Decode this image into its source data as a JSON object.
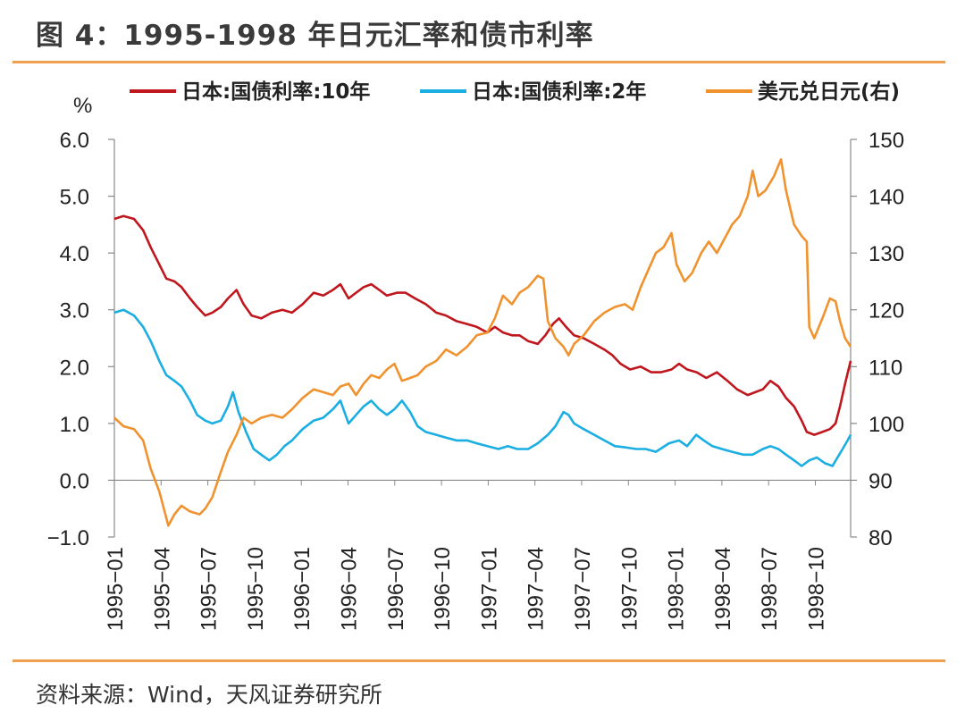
{
  "header": {
    "title": "图 4：1995-1998 年日元汇率和债市利率"
  },
  "footer": {
    "source": "资料来源：Wind，天风证券研究所"
  },
  "chart_data": {
    "type": "line",
    "left_unit": "%",
    "left_axis": {
      "ylim": [
        -1.0,
        6.0
      ],
      "ticks": [
        "6.0",
        "5.0",
        "4.0",
        "3.0",
        "2.0",
        "1.0",
        "0.0",
        "−1.0"
      ]
    },
    "right_axis": {
      "ylim": [
        80,
        150
      ],
      "ticks": [
        "150",
        "140",
        "130",
        "120",
        "110",
        "100",
        "90",
        "80"
      ]
    },
    "x_ticks": [
      "1995−01",
      "1995−04",
      "1995−07",
      "1995−10",
      "1996−01",
      "1996−04",
      "1996−07",
      "1996−10",
      "1997−01",
      "1997−04",
      "1997−07",
      "1997−10",
      "1998−01",
      "1998−04",
      "1998−07",
      "1998−10"
    ],
    "x_range": [
      "1995-01-02",
      "1998-12-31"
    ],
    "legend_position": "top",
    "series": [
      {
        "name": "日本:国债利率:10年",
        "axis": "left",
        "color": "#c0161d",
        "points": [
          [
            "1995-01-02",
            4.6
          ],
          [
            "1995-01-20",
            4.65
          ],
          [
            "1995-02-10",
            4.6
          ],
          [
            "1995-02-28",
            4.4
          ],
          [
            "1995-03-15",
            4.1
          ],
          [
            "1995-04-01",
            3.8
          ],
          [
            "1995-04-15",
            3.55
          ],
          [
            "1995-05-01",
            3.5
          ],
          [
            "1995-05-15",
            3.4
          ],
          [
            "1995-06-01",
            3.2
          ],
          [
            "1995-06-15",
            3.05
          ],
          [
            "1995-07-01",
            2.9
          ],
          [
            "1995-07-15",
            2.95
          ],
          [
            "1995-08-01",
            3.05
          ],
          [
            "1995-08-15",
            3.2
          ],
          [
            "1995-09-01",
            3.35
          ],
          [
            "1995-09-15",
            3.1
          ],
          [
            "1995-10-01",
            2.9
          ],
          [
            "1995-10-20",
            2.85
          ],
          [
            "1995-11-10",
            2.95
          ],
          [
            "1995-12-01",
            3.0
          ],
          [
            "1995-12-20",
            2.95
          ],
          [
            "1996-01-10",
            3.1
          ],
          [
            "1996-02-01",
            3.3
          ],
          [
            "1996-02-20",
            3.25
          ],
          [
            "1996-03-10",
            3.35
          ],
          [
            "1996-03-25",
            3.45
          ],
          [
            "1996-04-10",
            3.2
          ],
          [
            "1996-04-25",
            3.3
          ],
          [
            "1996-05-10",
            3.4
          ],
          [
            "1996-05-25",
            3.45
          ],
          [
            "1996-06-10",
            3.35
          ],
          [
            "1996-06-25",
            3.25
          ],
          [
            "1996-07-15",
            3.3
          ],
          [
            "1996-08-01",
            3.3
          ],
          [
            "1996-08-20",
            3.2
          ],
          [
            "1996-09-10",
            3.1
          ],
          [
            "1996-10-01",
            2.95
          ],
          [
            "1996-10-20",
            2.9
          ],
          [
            "1996-11-10",
            2.8
          ],
          [
            "1996-12-01",
            2.75
          ],
          [
            "1996-12-20",
            2.7
          ],
          [
            "1997-01-10",
            2.6
          ],
          [
            "1997-01-25",
            2.7
          ],
          [
            "1997-02-10",
            2.6
          ],
          [
            "1997-02-28",
            2.55
          ],
          [
            "1997-03-15",
            2.55
          ],
          [
            "1997-04-01",
            2.45
          ],
          [
            "1997-04-20",
            2.4
          ],
          [
            "1997-05-05",
            2.55
          ],
          [
            "1997-05-20",
            2.75
          ],
          [
            "1997-06-01",
            2.85
          ],
          [
            "1997-06-15",
            2.7
          ],
          [
            "1997-07-01",
            2.55
          ],
          [
            "1997-07-20",
            2.5
          ],
          [
            "1997-08-10",
            2.4
          ],
          [
            "1997-08-30",
            2.3
          ],
          [
            "1997-09-15",
            2.2
          ],
          [
            "1997-10-01",
            2.05
          ],
          [
            "1997-10-20",
            1.95
          ],
          [
            "1997-11-10",
            2.0
          ],
          [
            "1997-12-01",
            1.9
          ],
          [
            "1997-12-20",
            1.9
          ],
          [
            "1998-01-10",
            1.95
          ],
          [
            "1998-01-25",
            2.05
          ],
          [
            "1998-02-10",
            1.95
          ],
          [
            "1998-03-01",
            1.9
          ],
          [
            "1998-03-20",
            1.8
          ],
          [
            "1998-04-10",
            1.9
          ],
          [
            "1998-05-01",
            1.75
          ],
          [
            "1998-05-20",
            1.6
          ],
          [
            "1998-06-10",
            1.5
          ],
          [
            "1998-06-25",
            1.55
          ],
          [
            "1998-07-10",
            1.6
          ],
          [
            "1998-07-25",
            1.75
          ],
          [
            "1998-08-10",
            1.65
          ],
          [
            "1998-08-25",
            1.45
          ],
          [
            "1998-09-10",
            1.3
          ],
          [
            "1998-09-25",
            1.05
          ],
          [
            "1998-10-05",
            0.85
          ],
          [
            "1998-10-20",
            0.8
          ],
          [
            "1998-11-05",
            0.85
          ],
          [
            "1998-11-20",
            0.9
          ],
          [
            "1998-12-01",
            1.0
          ],
          [
            "1998-12-10",
            1.3
          ],
          [
            "1998-12-20",
            1.7
          ],
          [
            "1998-12-31",
            2.1
          ]
        ]
      },
      {
        "name": "日本:国债利率:2年",
        "axis": "left",
        "color": "#1aaee2",
        "points": [
          [
            "1995-01-02",
            2.95
          ],
          [
            "1995-01-20",
            3.0
          ],
          [
            "1995-02-10",
            2.9
          ],
          [
            "1995-02-28",
            2.7
          ],
          [
            "1995-03-15",
            2.45
          ],
          [
            "1995-04-01",
            2.1
          ],
          [
            "1995-04-15",
            1.85
          ],
          [
            "1995-05-01",
            1.75
          ],
          [
            "1995-05-15",
            1.65
          ],
          [
            "1995-06-01",
            1.4
          ],
          [
            "1995-06-15",
            1.15
          ],
          [
            "1995-07-01",
            1.05
          ],
          [
            "1995-07-15",
            1.0
          ],
          [
            "1995-08-01",
            1.05
          ],
          [
            "1995-08-15",
            1.3
          ],
          [
            "1995-08-25",
            1.55
          ],
          [
            "1995-09-05",
            1.2
          ],
          [
            "1995-09-20",
            0.85
          ],
          [
            "1995-10-05",
            0.55
          ],
          [
            "1995-10-20",
            0.45
          ],
          [
            "1995-11-05",
            0.35
          ],
          [
            "1995-11-20",
            0.45
          ],
          [
            "1995-12-05",
            0.6
          ],
          [
            "1995-12-20",
            0.7
          ],
          [
            "1996-01-10",
            0.9
          ],
          [
            "1996-02-01",
            1.05
          ],
          [
            "1996-02-20",
            1.1
          ],
          [
            "1996-03-10",
            1.25
          ],
          [
            "1996-03-25",
            1.4
          ],
          [
            "1996-04-10",
            1.0
          ],
          [
            "1996-04-25",
            1.15
          ],
          [
            "1996-05-10",
            1.3
          ],
          [
            "1996-05-25",
            1.4
          ],
          [
            "1996-06-10",
            1.25
          ],
          [
            "1996-06-25",
            1.15
          ],
          [
            "1996-07-10",
            1.25
          ],
          [
            "1996-07-25",
            1.4
          ],
          [
            "1996-08-10",
            1.2
          ],
          [
            "1996-08-25",
            0.95
          ],
          [
            "1996-09-10",
            0.85
          ],
          [
            "1996-10-01",
            0.8
          ],
          [
            "1996-10-20",
            0.75
          ],
          [
            "1996-11-10",
            0.7
          ],
          [
            "1996-12-01",
            0.7
          ],
          [
            "1996-12-20",
            0.65
          ],
          [
            "1997-01-10",
            0.6
          ],
          [
            "1997-02-01",
            0.55
          ],
          [
            "1997-02-20",
            0.6
          ],
          [
            "1997-03-10",
            0.55
          ],
          [
            "1997-04-01",
            0.55
          ],
          [
            "1997-04-20",
            0.65
          ],
          [
            "1997-05-10",
            0.8
          ],
          [
            "1997-05-25",
            0.95
          ],
          [
            "1997-06-10",
            1.2
          ],
          [
            "1997-06-20",
            1.15
          ],
          [
            "1997-07-01",
            1.0
          ],
          [
            "1997-07-20",
            0.9
          ],
          [
            "1997-08-10",
            0.8
          ],
          [
            "1997-08-30",
            0.7
          ],
          [
            "1997-09-20",
            0.6
          ],
          [
            "1997-10-10",
            0.58
          ],
          [
            "1997-11-01",
            0.55
          ],
          [
            "1997-11-20",
            0.55
          ],
          [
            "1997-12-10",
            0.5
          ],
          [
            "1998-01-05",
            0.65
          ],
          [
            "1998-01-25",
            0.7
          ],
          [
            "1998-02-10",
            0.6
          ],
          [
            "1998-02-28",
            0.8
          ],
          [
            "1998-03-15",
            0.7
          ],
          [
            "1998-04-01",
            0.6
          ],
          [
            "1998-04-20",
            0.55
          ],
          [
            "1998-05-10",
            0.5
          ],
          [
            "1998-06-01",
            0.45
          ],
          [
            "1998-06-20",
            0.45
          ],
          [
            "1998-07-10",
            0.55
          ],
          [
            "1998-07-25",
            0.6
          ],
          [
            "1998-08-10",
            0.55
          ],
          [
            "1998-08-25",
            0.45
          ],
          [
            "1998-09-10",
            0.35
          ],
          [
            "1998-09-25",
            0.25
          ],
          [
            "1998-10-10",
            0.35
          ],
          [
            "1998-10-25",
            0.4
          ],
          [
            "1998-11-10",
            0.3
          ],
          [
            "1998-11-25",
            0.25
          ],
          [
            "1998-12-05",
            0.4
          ],
          [
            "1998-12-15",
            0.55
          ],
          [
            "1998-12-25",
            0.7
          ],
          [
            "1998-12-31",
            0.8
          ]
        ]
      },
      {
        "name": "美元兑日元(右)",
        "axis": "right",
        "color": "#f0922e",
        "points": [
          [
            "1995-01-02",
            101.0
          ],
          [
            "1995-01-20",
            99.5
          ],
          [
            "1995-02-10",
            99.0
          ],
          [
            "1995-02-28",
            97.0
          ],
          [
            "1995-03-15",
            92.0
          ],
          [
            "1995-04-01",
            88.0
          ],
          [
            "1995-04-19",
            82.0
          ],
          [
            "1995-05-01",
            84.0
          ],
          [
            "1995-05-15",
            85.5
          ],
          [
            "1995-06-01",
            84.5
          ],
          [
            "1995-06-20",
            84.0
          ],
          [
            "1995-07-01",
            85.0
          ],
          [
            "1995-07-15",
            87.0
          ],
          [
            "1995-08-01",
            91.5
          ],
          [
            "1995-08-15",
            95.0
          ],
          [
            "1995-09-01",
            98.0
          ],
          [
            "1995-09-15",
            101.0
          ],
          [
            "1995-10-01",
            100.0
          ],
          [
            "1995-10-20",
            101.0
          ],
          [
            "1995-11-10",
            101.5
          ],
          [
            "1995-12-01",
            101.0
          ],
          [
            "1995-12-20",
            102.5
          ],
          [
            "1996-01-10",
            104.5
          ],
          [
            "1996-02-01",
            106.0
          ],
          [
            "1996-02-20",
            105.5
          ],
          [
            "1996-03-10",
            105.0
          ],
          [
            "1996-03-25",
            106.5
          ],
          [
            "1996-04-10",
            107.0
          ],
          [
            "1996-04-25",
            105.0
          ],
          [
            "1996-05-10",
            107.0
          ],
          [
            "1996-05-25",
            108.5
          ],
          [
            "1996-06-10",
            108.0
          ],
          [
            "1996-06-25",
            109.5
          ],
          [
            "1996-07-10",
            110.5
          ],
          [
            "1996-07-25",
            107.5
          ],
          [
            "1996-08-10",
            108.0
          ],
          [
            "1996-08-25",
            108.5
          ],
          [
            "1996-09-10",
            110.0
          ],
          [
            "1996-10-01",
            111.0
          ],
          [
            "1996-10-20",
            113.0
          ],
          [
            "1996-11-10",
            112.0
          ],
          [
            "1996-12-01",
            113.5
          ],
          [
            "1996-12-20",
            115.5
          ],
          [
            "1997-01-10",
            116.0
          ],
          [
            "1997-01-25",
            118.5
          ],
          [
            "1997-02-10",
            122.5
          ],
          [
            "1997-02-28",
            121.0
          ],
          [
            "1997-03-15",
            123.0
          ],
          [
            "1997-04-01",
            124.0
          ],
          [
            "1997-04-20",
            126.0
          ],
          [
            "1997-05-01",
            125.5
          ],
          [
            "1997-05-10",
            118.0
          ],
          [
            "1997-05-25",
            115.0
          ],
          [
            "1997-06-10",
            113.5
          ],
          [
            "1997-06-20",
            112.0
          ],
          [
            "1997-07-01",
            114.0
          ],
          [
            "1997-07-20",
            115.5
          ],
          [
            "1997-08-10",
            118.0
          ],
          [
            "1997-08-30",
            119.5
          ],
          [
            "1997-09-20",
            120.5
          ],
          [
            "1997-10-10",
            121.0
          ],
          [
            "1997-10-25",
            120.0
          ],
          [
            "1997-11-10",
            124.0
          ],
          [
            "1997-11-25",
            127.0
          ],
          [
            "1997-12-10",
            130.0
          ],
          [
            "1997-12-25",
            131.0
          ],
          [
            "1998-01-10",
            133.5
          ],
          [
            "1998-01-20",
            128.0
          ],
          [
            "1998-02-05",
            125.0
          ],
          [
            "1998-02-20",
            126.5
          ],
          [
            "1998-03-10",
            130.0
          ],
          [
            "1998-03-25",
            132.0
          ],
          [
            "1998-04-10",
            130.0
          ],
          [
            "1998-04-25",
            132.5
          ],
          [
            "1998-05-10",
            135.0
          ],
          [
            "1998-05-25",
            136.5
          ],
          [
            "1998-06-10",
            140.0
          ],
          [
            "1998-06-20",
            144.5
          ],
          [
            "1998-07-01",
            140.0
          ],
          [
            "1998-07-15",
            141.0
          ],
          [
            "1998-08-01",
            143.5
          ],
          [
            "1998-08-15",
            146.5
          ],
          [
            "1998-08-25",
            141.0
          ],
          [
            "1998-09-10",
            135.0
          ],
          [
            "1998-09-25",
            133.0
          ],
          [
            "1998-10-05",
            132.0
          ],
          [
            "1998-10-10",
            117.0
          ],
          [
            "1998-10-20",
            115.0
          ],
          [
            "1998-11-05",
            118.5
          ],
          [
            "1998-11-20",
            122.0
          ],
          [
            "1998-12-01",
            121.5
          ],
          [
            "1998-12-10",
            118.0
          ],
          [
            "1998-12-20",
            115.0
          ],
          [
            "1998-12-31",
            113.5
          ]
        ]
      }
    ]
  }
}
